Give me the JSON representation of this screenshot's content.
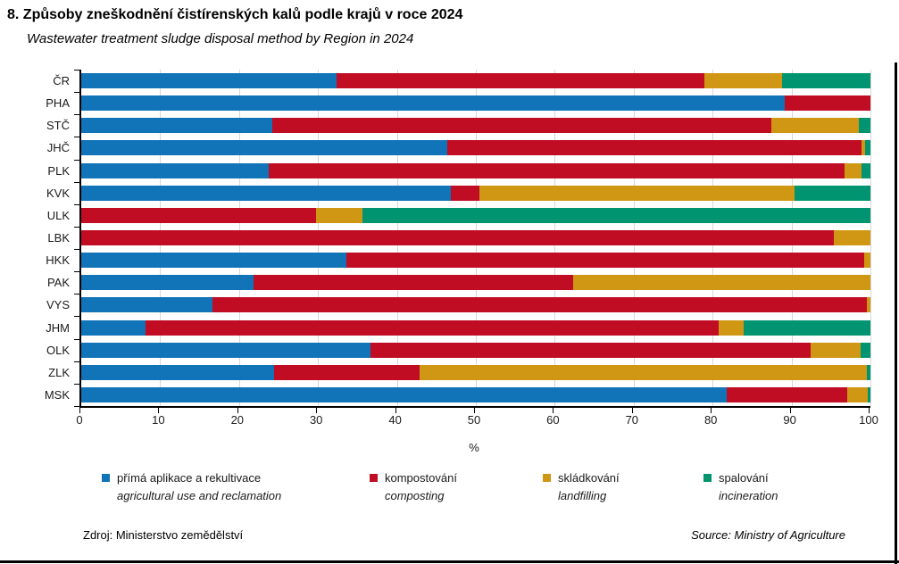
{
  "title": "8. Způsoby zneškodnění čistírenských kalů podle krajů v roce 2024",
  "subtitle": "Wastewater treatment  sludge disposal method by Region in 2024",
  "footer": {
    "source_cz": "Zdroj:  Ministerstvo  zemědělství",
    "source_en": "Source:  Ministry of Agriculture"
  },
  "chart_data": {
    "type": "bar",
    "orientation": "horizontal",
    "stacked": true,
    "grid": "vertical-light-gray",
    "legend_position": "bottom",
    "xlabel": "%",
    "xlim": [
      0,
      100
    ],
    "xticks": [
      0,
      10,
      20,
      30,
      40,
      50,
      60,
      70,
      80,
      90,
      100
    ],
    "categories": [
      "ČR",
      "PHA",
      "STČ",
      "JHČ",
      "PLK",
      "KVK",
      "ULK",
      "LBK",
      "HKK",
      "PAK",
      "VYS",
      "JHM",
      "OLK",
      "ZLK",
      "MSK"
    ],
    "series": [
      {
        "name": "přímá aplikace  a rekultivace",
        "name_en": "agricultural use and reclamation",
        "color": "#1173b8",
        "values": [
          32.4,
          89.1,
          24.2,
          46.4,
          23.7,
          46.8,
          0,
          0,
          33.6,
          21.8,
          16.6,
          8.2,
          36.7,
          24.4,
          81.8
        ]
      },
      {
        "name": "kompostování",
        "name_en": "composting",
        "color": "#c00d24",
        "values": [
          46.6,
          10.9,
          63.3,
          52.5,
          73.0,
          3.7,
          29.8,
          95.4,
          65.6,
          40.5,
          82.9,
          72.6,
          55.7,
          18.5,
          15.3
        ]
      },
      {
        "name": "skládkování",
        "name_en": "landfilling",
        "color": "#cf9713",
        "values": [
          9.8,
          0,
          11.0,
          0.4,
          2.2,
          39.9,
          5.8,
          4.6,
          0.8,
          37.7,
          0.5,
          3.1,
          6.4,
          56.7,
          2.6
        ]
      },
      {
        "name": "spalování",
        "name_en": "incineration",
        "color": "#009570",
        "values": [
          11.2,
          0,
          1.5,
          0.7,
          1.1,
          9.6,
          64.4,
          0,
          0,
          0,
          0,
          16.1,
          1.2,
          0.4,
          0.3
        ]
      }
    ]
  }
}
